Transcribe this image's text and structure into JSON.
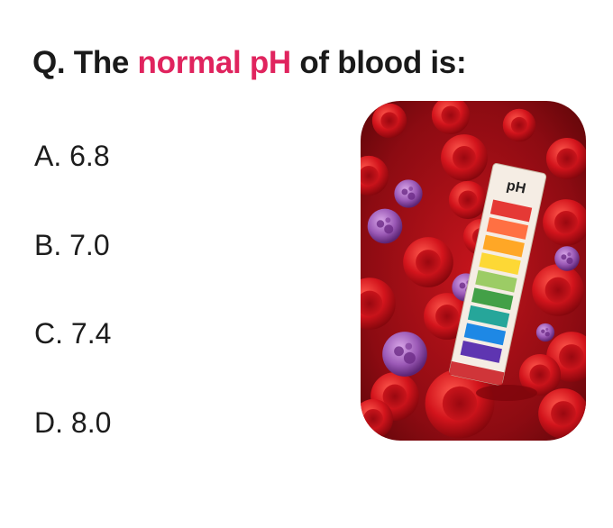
{
  "question": {
    "prefix": "Q. The ",
    "highlight": "normal pH",
    "suffix": " of blood is:"
  },
  "options": [
    {
      "label": "A. 6.8"
    },
    {
      "label": "B. 7.0"
    },
    {
      "label": "C. 7.4"
    },
    {
      "label": "D. 8.0"
    }
  ],
  "illustration": {
    "strip_label": "pH",
    "strip_colors": [
      "#e53935",
      "#ff7043",
      "#ffa726",
      "#fdd835",
      "#9ccc65",
      "#43a047",
      "#26a69a",
      "#1e88e5",
      "#5e35b1"
    ]
  },
  "colors": {
    "highlight": "#e0245e",
    "text": "#1a1a1a",
    "blood": "#b3121b"
  }
}
